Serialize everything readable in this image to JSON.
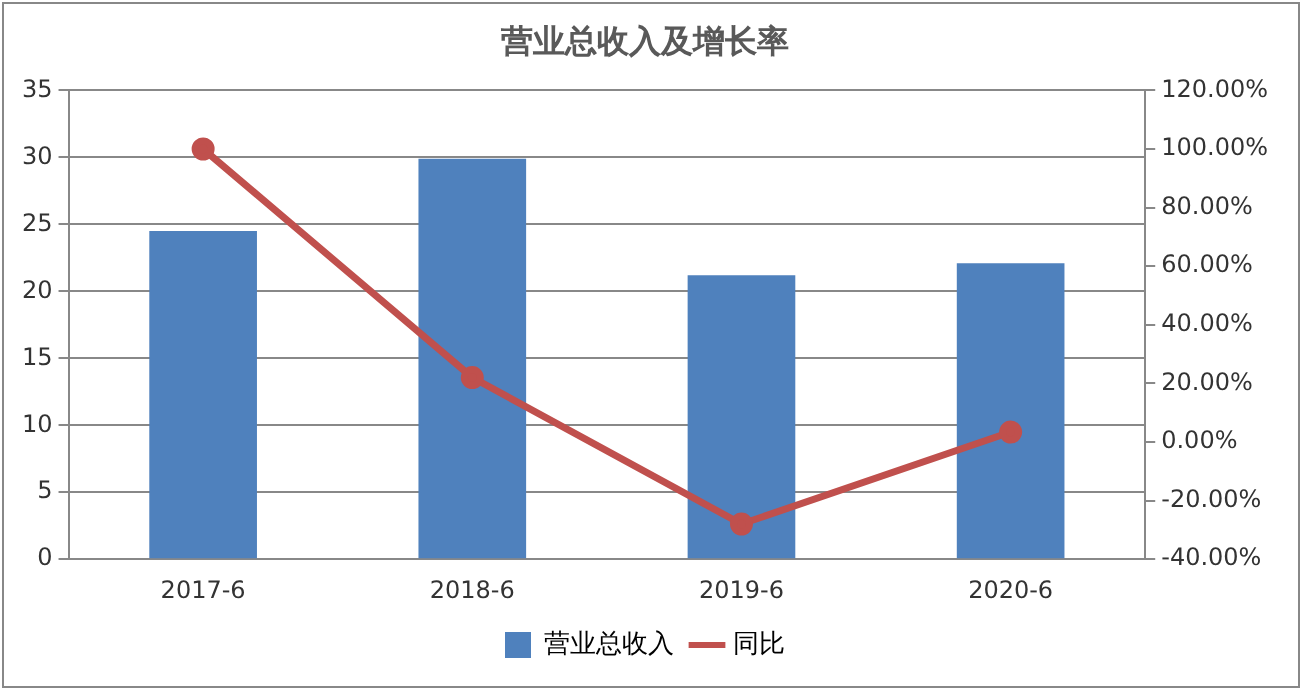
{
  "chart_data": {
    "type": "bar",
    "title": "营业总收入及增长率",
    "categories": [
      "2017-6",
      "2018-6",
      "2019-6",
      "2020-6"
    ],
    "series": [
      {
        "name": "营业总收入",
        "color": "#4f81bd",
        "values": [
          24.5,
          29.9,
          21.2,
          22.1
        ]
      },
      {
        "name": "同比",
        "type": "line",
        "axis": "y2",
        "color": "#c0504d",
        "marker": "circle",
        "values": [
          100,
          22,
          -28,
          3.4
        ]
      }
    ],
    "ylim": [
      0,
      35
    ],
    "yticks": [
      0,
      5,
      10,
      15,
      20,
      25,
      30,
      35
    ],
    "y2lim": [
      -40,
      120
    ],
    "y2ticks": [
      {
        "value": -40,
        "label": "-40.00%"
      },
      {
        "value": -20,
        "label": "-20.00%"
      },
      {
        "value": 0,
        "label": "0.00%"
      },
      {
        "value": 20,
        "label": "20.00%"
      },
      {
        "value": 40,
        "label": "40.00%"
      },
      {
        "value": 60,
        "label": "60.00%"
      },
      {
        "value": 80,
        "label": "80.00%"
      },
      {
        "value": 100,
        "label": "100.00%"
      },
      {
        "value": 120,
        "label": "120.00%"
      }
    ],
    "grid": "y",
    "legend": "bottom"
  }
}
